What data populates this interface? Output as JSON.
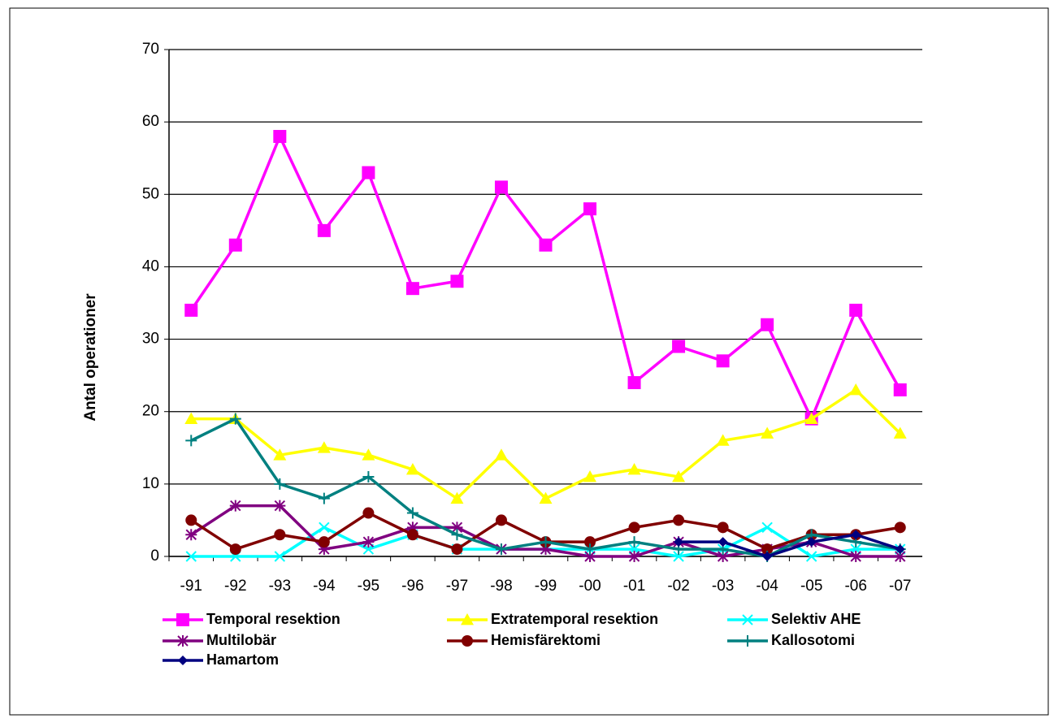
{
  "chart_data": {
    "type": "line",
    "y_label": "Antal operationer",
    "categories": [
      "-91",
      "-92",
      "-93",
      "-94",
      "-95",
      "-96",
      "-97",
      "-98",
      "-99",
      "-00",
      "-01",
      "-02",
      "-03",
      "-04",
      "-05",
      "-06",
      "-07"
    ],
    "ylim": [
      0,
      70
    ],
    "yticks": [
      0,
      10,
      20,
      30,
      40,
      50,
      60,
      70
    ],
    "grid": true,
    "series": [
      {
        "name": "Temporal resektion",
        "color": "#ff00ff",
        "marker": "square",
        "values": [
          34,
          43,
          58,
          45,
          53,
          37,
          38,
          51,
          43,
          48,
          24,
          29,
          27,
          32,
          19,
          34,
          23
        ]
      },
      {
        "name": "Extratemporal resektion",
        "color": "#ffff00",
        "marker": "triangle",
        "values": [
          19,
          19,
          14,
          15,
          14,
          12,
          8,
          14,
          8,
          11,
          12,
          11,
          16,
          17,
          19,
          23,
          17
        ]
      },
      {
        "name": "Selektiv AHE",
        "color": "#00ffff",
        "marker": "x",
        "values": [
          0,
          0,
          0,
          4,
          1,
          3,
          1,
          1,
          1,
          1,
          1,
          0,
          1,
          4,
          0,
          1,
          1
        ]
      },
      {
        "name": "Multilobär",
        "color": "#800080",
        "marker": "asterisk",
        "values": [
          3,
          7,
          7,
          1,
          2,
          4,
          4,
          1,
          1,
          0,
          0,
          2,
          0,
          1,
          2,
          0,
          0
        ]
      },
      {
        "name": "Hemisfärektomi",
        "color": "#800000",
        "marker": "circle",
        "values": [
          5,
          1,
          3,
          2,
          6,
          3,
          1,
          5,
          2,
          2,
          4,
          5,
          4,
          1,
          3,
          3,
          4
        ]
      },
      {
        "name": "Kallosotomi",
        "color": "#008080",
        "marker": "plus",
        "values": [
          16,
          19,
          10,
          8,
          11,
          6,
          3,
          1,
          2,
          1,
          2,
          1,
          1,
          0,
          3,
          2,
          1
        ]
      },
      {
        "name": "Hamartom",
        "color": "#000080",
        "marker": "diamond",
        "values": [
          null,
          null,
          null,
          null,
          null,
          null,
          null,
          null,
          null,
          null,
          null,
          2,
          2,
          0,
          2,
          3,
          1
        ]
      }
    ]
  }
}
